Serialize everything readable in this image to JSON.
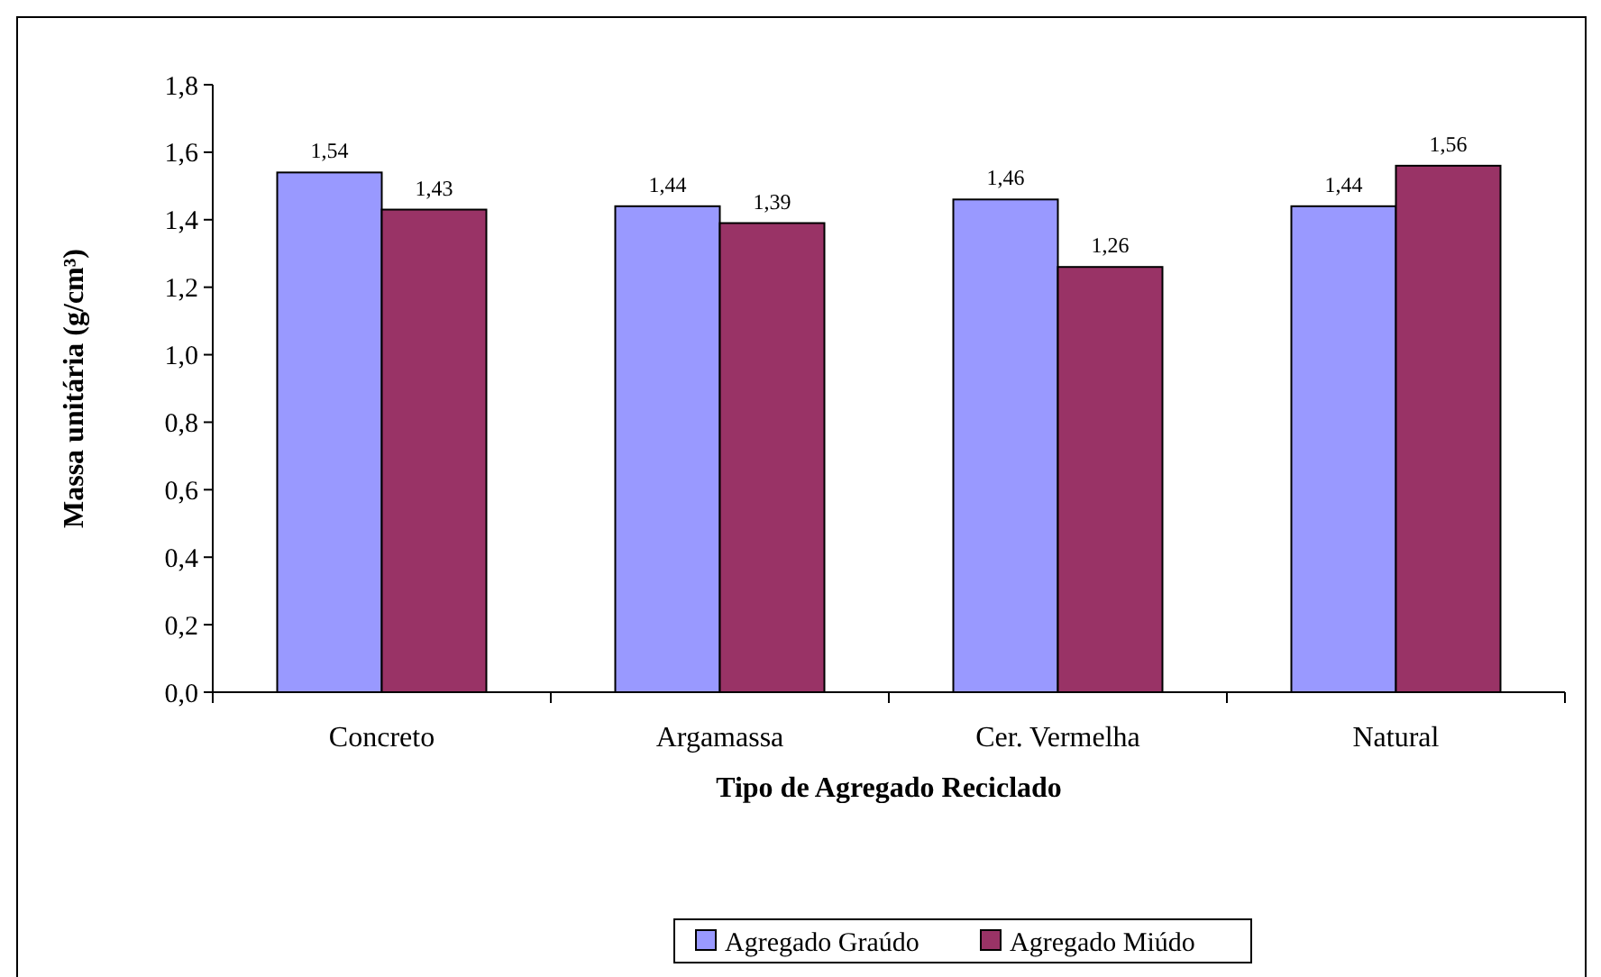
{
  "chart_data": {
    "type": "bar",
    "xlabel": "Tipo de Agregado Reciclado",
    "ylabel": "Massa unitária (g/cm³)",
    "categories": [
      "Concreto",
      "Argamassa",
      "Cer. Vermelha",
      "Natural"
    ],
    "series": [
      {
        "name": "Agregado Graúdo",
        "color": "#9999ff",
        "values": [
          1.54,
          1.44,
          1.46,
          1.44
        ],
        "value_labels": [
          "1,54",
          "1,44",
          "1,46",
          "1,44"
        ]
      },
      {
        "name": "Agregado Miúdo",
        "color": "#993366",
        "values": [
          1.43,
          1.39,
          1.26,
          1.56
        ],
        "value_labels": [
          "1,43",
          "1,39",
          "1,26",
          "1,56"
        ]
      }
    ],
    "ylim": [
      0,
      1.8
    ],
    "yticks": [
      {
        "value": 0,
        "label": "0,0"
      },
      {
        "value": 0.2,
        "label": "0,2"
      },
      {
        "value": 0.4,
        "label": "0,4"
      },
      {
        "value": 0.6,
        "label": "0,6"
      },
      {
        "value": 0.8,
        "label": "0,8"
      },
      {
        "value": 1.0,
        "label": "1,0"
      },
      {
        "value": 1.2,
        "label": "1,2"
      },
      {
        "value": 1.4,
        "label": "1,4"
      },
      {
        "value": 1.6,
        "label": "1,6"
      },
      {
        "value": 1.8,
        "label": "1,8"
      }
    ],
    "grid": false,
    "legend": "bottom"
  }
}
